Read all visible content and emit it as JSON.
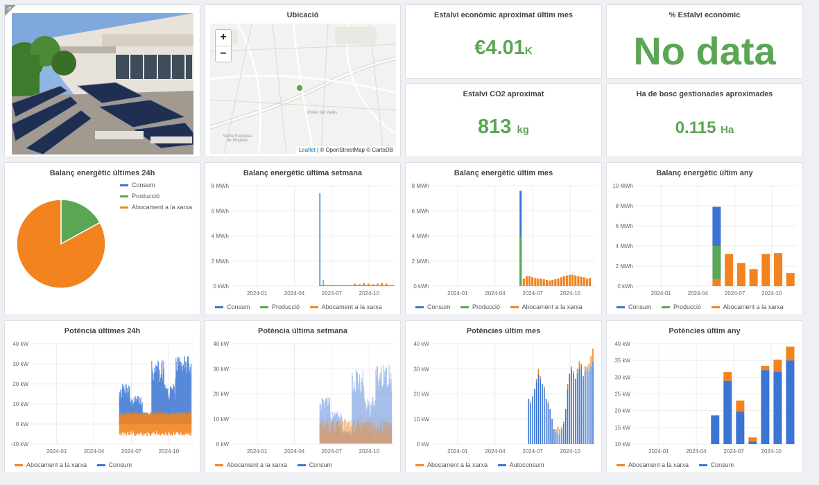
{
  "colors": {
    "consum": "#3b75d3",
    "produccio": "#5aa654",
    "abocament": "#f2831f",
    "stat": "#5aa654"
  },
  "map": {
    "title": "Ubicació",
    "zoom_in": "+",
    "zoom_out": "−",
    "attribution_leaflet": "Leaflet",
    "attribution_rest": " | © OpenStreetMap © CartoDB",
    "labels": [
      "Mollet del Vallès",
      "Santa Perpètua de Mogoda"
    ]
  },
  "stats": {
    "eco": {
      "title": "Estalvi econòmic aproximat últim mes",
      "value": "€4.01",
      "unit": "K"
    },
    "pct": {
      "title": "% Estalvi econòmic",
      "value": "No data"
    },
    "co2": {
      "title": "Estalvi CO2 aproximat",
      "value": "813",
      "unit": "kg"
    },
    "forest": {
      "title": "Ha de bosc gestionades aproximades",
      "value": "0.115",
      "unit": "Ha"
    }
  },
  "chart_data": [
    {
      "type": "pie",
      "title": "Balanç energètic últimes 24h",
      "series": [
        {
          "name": "Consum",
          "value": 0
        },
        {
          "name": "Producció",
          "value": 17
        },
        {
          "name": "Abocament a la xarxa",
          "value": 83
        }
      ]
    },
    {
      "type": "line",
      "title": "Balanç energètic última setmana",
      "yticks": [
        "0 kWh",
        "2 MWh",
        "4 MWh",
        "6 MWh",
        "8 MWh"
      ],
      "ylim": [
        0,
        8
      ],
      "xticks": [
        "2024-01",
        "2024-04",
        "2024-07",
        "2024-10"
      ],
      "series": [
        {
          "name": "Consum",
          "values": [
            7.4
          ]
        },
        {
          "name": "Producció",
          "values": [
            0.5
          ]
        },
        {
          "name": "Abocament a la xarxa",
          "values": [
            0.2,
            0.15,
            0.25,
            0.2,
            0.15,
            0.2,
            0.25,
            0.2
          ]
        }
      ]
    },
    {
      "type": "bar",
      "title": "Balanç energètic últim mes",
      "yticks": [
        "0 kWh",
        "2 MWh",
        "4 MWh",
        "6 MWh",
        "8 MWh"
      ],
      "ylim": [
        0,
        8
      ],
      "xticks": [
        "2024-01",
        "2024-04",
        "2024-07",
        "2024-10"
      ],
      "series": [
        {
          "name": "Consum",
          "values": [
            7.6
          ]
        },
        {
          "name": "Producció",
          "values": [
            4.0
          ]
        },
        {
          "name": "Abocament a la xarxa",
          "values": [
            0.6,
            0.8,
            0.8,
            0.7,
            0.65,
            0.6,
            0.6,
            0.55,
            0.5,
            0.45,
            0.5,
            0.55,
            0.6,
            0.7,
            0.8,
            0.85,
            0.9,
            0.9,
            0.85,
            0.8,
            0.75,
            0.7,
            0.6,
            0.65
          ]
        }
      ]
    },
    {
      "type": "bar",
      "title": "Balanç energètic últim any",
      "yticks": [
        "0 kWh",
        "2 MWh",
        "4 MWh",
        "6 MWh",
        "8 MWh",
        "10 MWh"
      ],
      "ylim": [
        0,
        10
      ],
      "xticks": [
        "2024-01",
        "2024-04",
        "2024-07",
        "2024-10"
      ],
      "categories": [
        "2024-05",
        "2024-06",
        "2024-07",
        "2024-08",
        "2024-09",
        "2024-10",
        "2024-11"
      ],
      "series": [
        {
          "name": "Consum",
          "values": [
            7.9,
            0,
            0,
            0,
            0,
            0,
            0
          ]
        },
        {
          "name": "Producció",
          "values": [
            4.0,
            0,
            0,
            0,
            0,
            0,
            0
          ]
        },
        {
          "name": "Abocament a la xarxa",
          "values": [
            0.7,
            3.2,
            2.3,
            1.7,
            3.2,
            3.3,
            1.3
          ]
        }
      ]
    },
    {
      "type": "line",
      "title": "Potència últimes 24h",
      "yticks": [
        "-10 kW",
        "0 kW",
        "10 kW",
        "20 kW",
        "30 kW",
        "40 kW"
      ],
      "ylim": [
        -10,
        40
      ],
      "xticks": [
        "2024-01",
        "2024-04",
        "2024-07",
        "2024-10"
      ],
      "series": [
        {
          "name": "Abocament a la xarxa"
        },
        {
          "name": "Consum"
        }
      ]
    },
    {
      "type": "line",
      "title": "Potència última setmana",
      "yticks": [
        "0 kW",
        "10 kW",
        "20 kW",
        "30 kW",
        "40 kW"
      ],
      "ylim": [
        0,
        40
      ],
      "xticks": [
        "2024-01",
        "2024-04",
        "2024-07",
        "2024-10"
      ],
      "series": [
        {
          "name": "Abocament a la xarxa"
        },
        {
          "name": "Consum"
        }
      ]
    },
    {
      "type": "bar",
      "title": "Potències últim mes",
      "yticks": [
        "0 kW",
        "10 kW",
        "20 kW",
        "30 kW",
        "40 kW"
      ],
      "ylim": [
        0,
        40
      ],
      "xticks": [
        "2024-01",
        "2024-04",
        "2024-07",
        "2024-10"
      ],
      "series": [
        {
          "name": "Abocament a la xarxa",
          "values": [
            0,
            1,
            0,
            0,
            1,
            2,
            1,
            0,
            1,
            0,
            1,
            0,
            0,
            0,
            1,
            3,
            2,
            1,
            1,
            0,
            2,
            0,
            1,
            1,
            0,
            2,
            3,
            1,
            0,
            2,
            1,
            3,
            4,
            5
          ]
        },
        {
          "name": "Autoconsum",
          "values": [
            18,
            16,
            19,
            22,
            25,
            28,
            26,
            24,
            22,
            18,
            16,
            14,
            10,
            6,
            5,
            4,
            4,
            6,
            8,
            14,
            22,
            28,
            30,
            28,
            26,
            28,
            30,
            31,
            27,
            29,
            30,
            29,
            31,
            33
          ]
        }
      ]
    },
    {
      "type": "bar",
      "title": "Potències últim any",
      "yticks": [
        "10 kW",
        "15 kW",
        "20 kW",
        "25 kW",
        "30 kW",
        "35 kW",
        "40 kW"
      ],
      "ylim": [
        10,
        40
      ],
      "xticks": [
        "2024-01",
        "2024-04",
        "2024-07",
        "2024-10"
      ],
      "categories": [
        "2024-05",
        "2024-06",
        "2024-07",
        "2024-08",
        "2024-09",
        "2024-10",
        "2024-11"
      ],
      "series": [
        {
          "name": "Abocament a la xarxa",
          "values": [
            0,
            2.6,
            3.2,
            1.2,
            1.3,
            3.6,
            4.1
          ]
        },
        {
          "name": "Consum",
          "values": [
            18.6,
            28.9,
            19.8,
            10.8,
            32.1,
            31.6,
            35
          ]
        }
      ]
    }
  ]
}
